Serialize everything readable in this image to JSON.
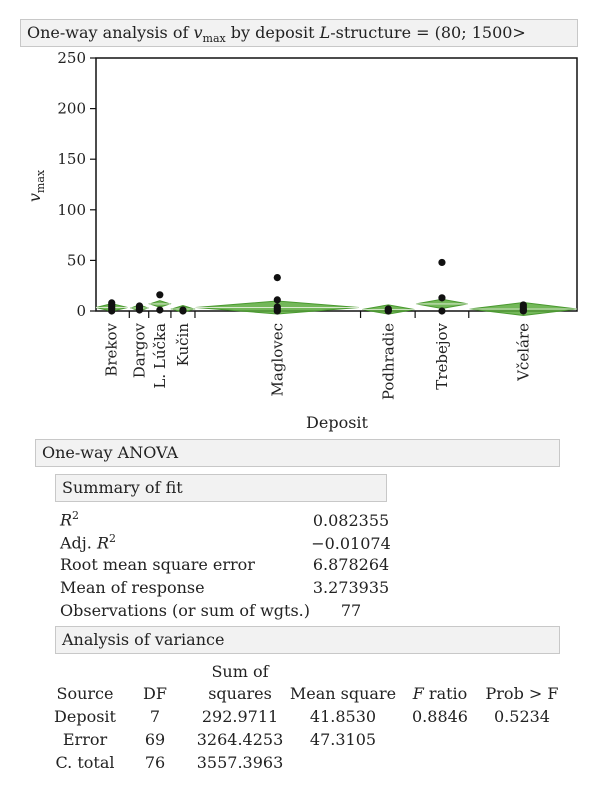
{
  "title": {
    "prefix": "One-way analysis of ",
    "var": "v",
    "var_sub": "max",
    "mid": " by deposit ",
    "struct": "L",
    "suffix": "-structure = (80; 1500>"
  },
  "chart_data": {
    "type": "scatter",
    "title": "One-way analysis of v max by deposit L-structure = (80; 1500>",
    "xlabel": "Deposit",
    "ylabel": "v max",
    "ylabel_main": "v",
    "ylabel_sub": "max",
    "ylim": [
      0,
      250
    ],
    "yticks": [
      0,
      50,
      100,
      150,
      200,
      250
    ],
    "grid": false,
    "groups": [
      {
        "name": "Brekov",
        "from": 0.0,
        "to": 8.5,
        "mean": 3.5,
        "points": [
          0,
          2,
          4,
          6,
          8
        ]
      },
      {
        "name": "Dargov",
        "from": 9.5,
        "to": 14.0,
        "mean": 3.0,
        "points": [
          1,
          3,
          5
        ]
      },
      {
        "name": "L. Lúčka",
        "from": 14.5,
        "to": 20.0,
        "mean": 7.0,
        "points": [
          1,
          16
        ]
      },
      {
        "name": "Kučin",
        "from": 20.5,
        "to": 26.5,
        "mean": 2.0,
        "points": [
          0,
          1
        ]
      },
      {
        "name": "Maglovec",
        "from": 27.0,
        "to": 71.0,
        "mean": 3.5,
        "points": [
          0,
          2,
          4,
          11,
          33
        ]
      },
      {
        "name": "Podhradie",
        "from": 72.0,
        "to": 86.0,
        "mean": 1.5,
        "points": [
          0,
          1,
          2
        ]
      },
      {
        "name": "Trebejov",
        "from": 86.5,
        "to": 100.5,
        "mean": 7.0,
        "points": [
          0,
          13,
          48
        ]
      },
      {
        "name": "Včeláre",
        "from": 101.0,
        "to": 130.0,
        "mean": 2.0,
        "points": [
          0,
          1,
          2,
          4,
          6
        ]
      }
    ],
    "colors": {
      "diamond": "#4a9a30",
      "diamond_fill": "#5aaa3c",
      "point": "#111111"
    }
  },
  "anova": {
    "header": "One-way ANOVA",
    "summary_header": "Summary of fit",
    "summary": [
      {
        "label_main": "R",
        "label_sup": "2",
        "value": "0.082355"
      },
      {
        "label_pre": "Adj. ",
        "label_main": "R",
        "label_sup": "2",
        "value": "−0.01074"
      },
      {
        "label_main": "Root mean square error",
        "value": "6.878264"
      },
      {
        "label_main": "Mean of response",
        "value": "3.273935"
      },
      {
        "label_main": "Observations (or sum of wgts.)",
        "value": "77"
      }
    ],
    "aov_header": "Analysis of variance",
    "columns": {
      "source": "Source",
      "df": "DF",
      "ss_top": "Sum of",
      "ss_bottom": "squares",
      "ms": "Mean square",
      "f_italic": "F",
      "f_rest": " ratio",
      "p": "Prob > F"
    },
    "rows": [
      {
        "source": "Deposit",
        "df": "7",
        "ss": "292.9711",
        "ms": "41.8530",
        "f": "0.8846",
        "p": "0.5234"
      },
      {
        "source": "Error",
        "df": "69",
        "ss": "3264.4253",
        "ms": "47.3105",
        "f": "",
        "p": ""
      },
      {
        "source": "C. total",
        "df": "76",
        "ss": "3557.3963",
        "ms": "",
        "f": "",
        "p": ""
      }
    ]
  }
}
